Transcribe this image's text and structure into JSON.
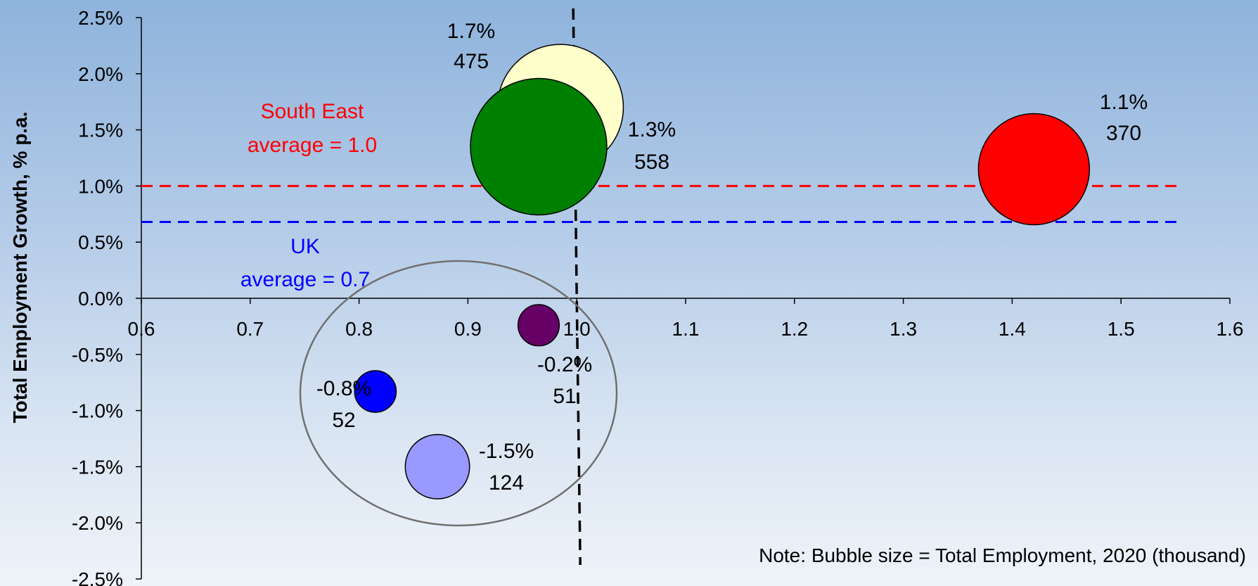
{
  "chart_data": {
    "type": "scatter",
    "subtype": "bubble",
    "title": "",
    "xlabel": "",
    "ylabel": "Total Employment Growth, % p.a.",
    "xlim": [
      0.6,
      1.6
    ],
    "ylim": [
      -2.5,
      2.5
    ],
    "x_ticks": [
      "0.6",
      "0.7",
      "0.8",
      "0.9",
      "1.0",
      "1.1",
      "1.2",
      "1.3",
      "1.4",
      "1.5",
      "1.6"
    ],
    "y_ticks": [
      "2.5%",
      "2.0%",
      "1.5%",
      "1.0%",
      "0.5%",
      "0.0%",
      "-0.5%",
      "-1.0%",
      "-1.5%",
      "-2.0%",
      "-2.5%"
    ],
    "grid": false,
    "vertical_reference_x": 1.0,
    "series": [
      {
        "x": 0.985,
        "y": 1.7,
        "size": 475,
        "color": "#ffffcc",
        "label_growth": "1.7%",
        "label_size": "475"
      },
      {
        "x": 0.965,
        "y": 1.35,
        "size": 558,
        "color": "#008000",
        "label_growth": "1.3%",
        "label_size": "558"
      },
      {
        "x": 1.42,
        "y": 1.15,
        "size": 370,
        "color": "#ff0000",
        "label_growth": "1.1%",
        "label_size": "370"
      },
      {
        "x": 0.965,
        "y": -0.24,
        "size": 51,
        "color": "#660066",
        "label_growth": "-0.2%",
        "label_size": "51"
      },
      {
        "x": 0.815,
        "y": -0.83,
        "size": 52,
        "color": "#0000ff",
        "label_growth": "-0.8%",
        "label_size": "52"
      },
      {
        "x": 0.872,
        "y": -1.5,
        "size": 124,
        "color": "#9999ff",
        "label_growth": "-1.5%",
        "label_size": "124"
      }
    ],
    "reference_lines": [
      {
        "y": 1.0,
        "color": "#ff0000",
        "label_line1": "South East",
        "label_line2": "average = 1.0"
      },
      {
        "y": 0.68,
        "color": "#0000ff",
        "label_line1": "UK",
        "label_line2": "average = 0.7"
      }
    ],
    "note": "Note: Bubble size = Total Employment, 2020 (thousand)"
  }
}
